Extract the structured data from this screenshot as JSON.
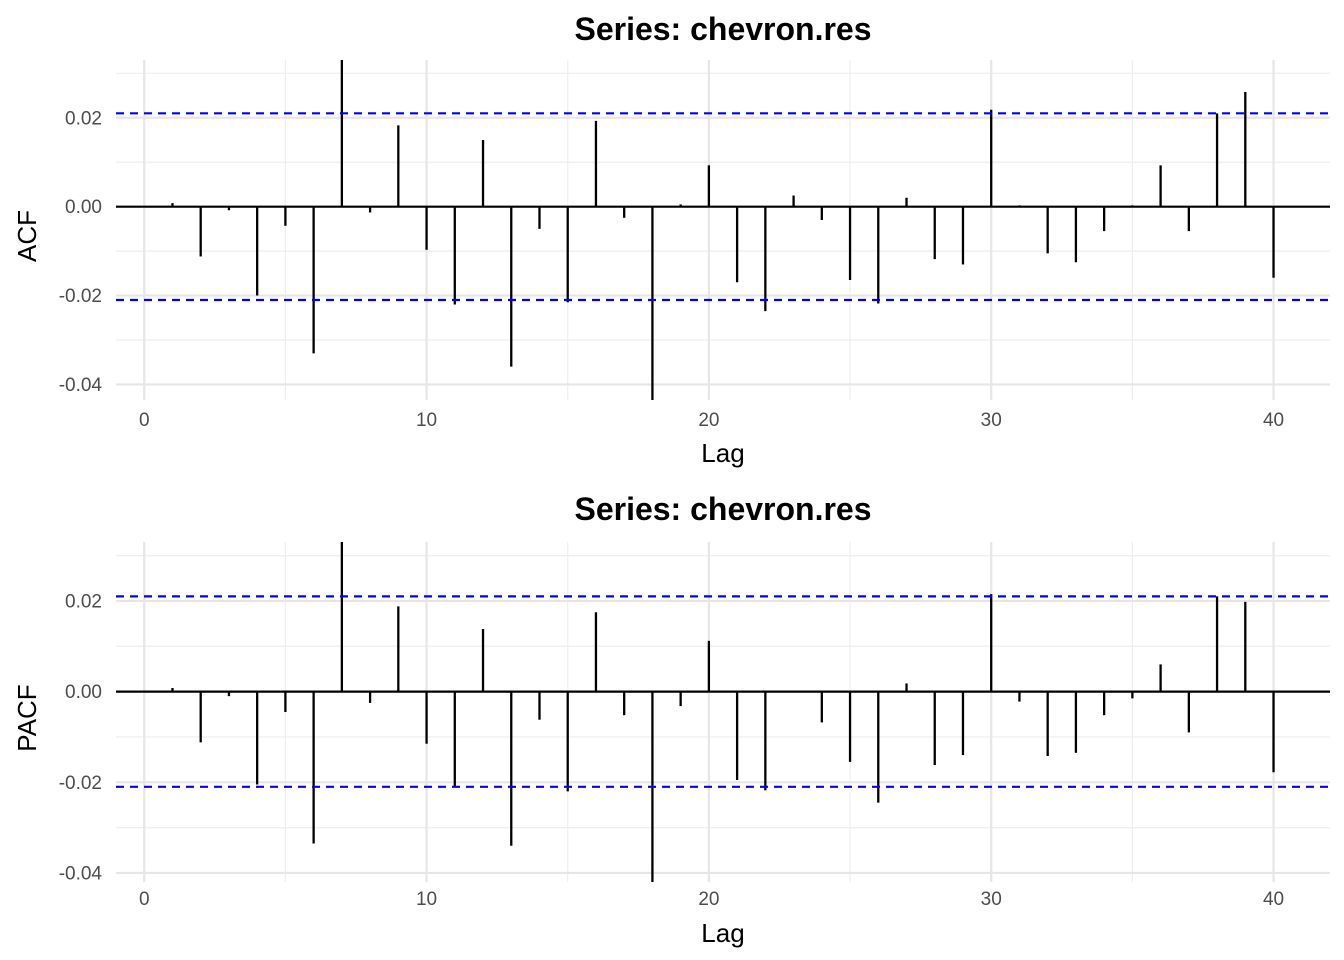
{
  "chart_data": [
    {
      "type": "bar",
      "title": "Series: chevron.res",
      "xlabel": "Lag",
      "ylabel": "ACF",
      "xlim": [
        -1,
        42
      ],
      "ylim": [
        -0.0435,
        0.033
      ],
      "xticks": [
        0,
        10,
        20,
        30,
        40
      ],
      "yticks": [
        -0.04,
        -0.02,
        0.0,
        0.02
      ],
      "ytick_labels": [
        "-0.04",
        "-0.02",
        "0.00",
        "0.02"
      ],
      "grid": true,
      "confidence_bound": 0.021,
      "confidence_color": "#0000ff",
      "bar_color": "#000000",
      "lags": [
        1,
        2,
        3,
        4,
        5,
        6,
        7,
        8,
        9,
        10,
        11,
        12,
        13,
        14,
        15,
        16,
        17,
        18,
        19,
        20,
        21,
        22,
        23,
        24,
        25,
        26,
        27,
        28,
        29,
        30,
        31,
        32,
        33,
        34,
        35,
        36,
        37,
        38,
        39,
        40
      ],
      "values": [
        0.0008,
        -0.0112,
        -0.0008,
        -0.02,
        -0.0043,
        -0.033,
        0.033,
        -0.0013,
        0.0183,
        -0.0097,
        -0.022,
        0.015,
        -0.036,
        -0.005,
        -0.0215,
        0.0193,
        -0.0025,
        -0.0435,
        0.0005,
        0.0093,
        -0.017,
        -0.0235,
        0.0025,
        -0.003,
        -0.0165,
        -0.0218,
        0.002,
        -0.0118,
        -0.013,
        0.0218,
        0.0003,
        -0.0105,
        -0.0125,
        -0.0055,
        0.0003,
        0.0093,
        -0.0055,
        0.021,
        0.0258,
        -0.016
      ]
    },
    {
      "type": "bar",
      "title": "Series: chevron.res",
      "xlabel": "Lag",
      "ylabel": "PACF",
      "xlim": [
        -1,
        42
      ],
      "ylim": [
        -0.042,
        0.033
      ],
      "xticks": [
        0,
        10,
        20,
        30,
        40
      ],
      "yticks": [
        -0.04,
        -0.02,
        0.0,
        0.02
      ],
      "ytick_labels": [
        "-0.04",
        "-0.02",
        "0.00",
        "0.02"
      ],
      "grid": true,
      "confidence_bound": 0.021,
      "confidence_color": "#0000ff",
      "bar_color": "#000000",
      "lags": [
        1,
        2,
        3,
        4,
        5,
        6,
        7,
        8,
        9,
        10,
        11,
        12,
        13,
        14,
        15,
        16,
        17,
        18,
        19,
        20,
        21,
        22,
        23,
        24,
        25,
        26,
        27,
        28,
        29,
        30,
        31,
        32,
        33,
        34,
        35,
        36,
        37,
        38,
        39,
        40
      ],
      "values": [
        0.0008,
        -0.0112,
        -0.001,
        -0.0205,
        -0.0045,
        -0.0335,
        0.033,
        -0.0025,
        0.0188,
        -0.0115,
        -0.021,
        0.0138,
        -0.034,
        -0.0062,
        -0.022,
        0.0175,
        -0.0052,
        -0.042,
        -0.0032,
        0.0112,
        -0.0195,
        -0.0218,
        -0.0002,
        -0.0068,
        -0.0155,
        -0.0245,
        0.0018,
        -0.0162,
        -0.014,
        0.0215,
        -0.0022,
        -0.0142,
        -0.0135,
        -0.0052,
        -0.0015,
        0.006,
        -0.009,
        0.021,
        0.0198,
        -0.0178
      ]
    }
  ]
}
